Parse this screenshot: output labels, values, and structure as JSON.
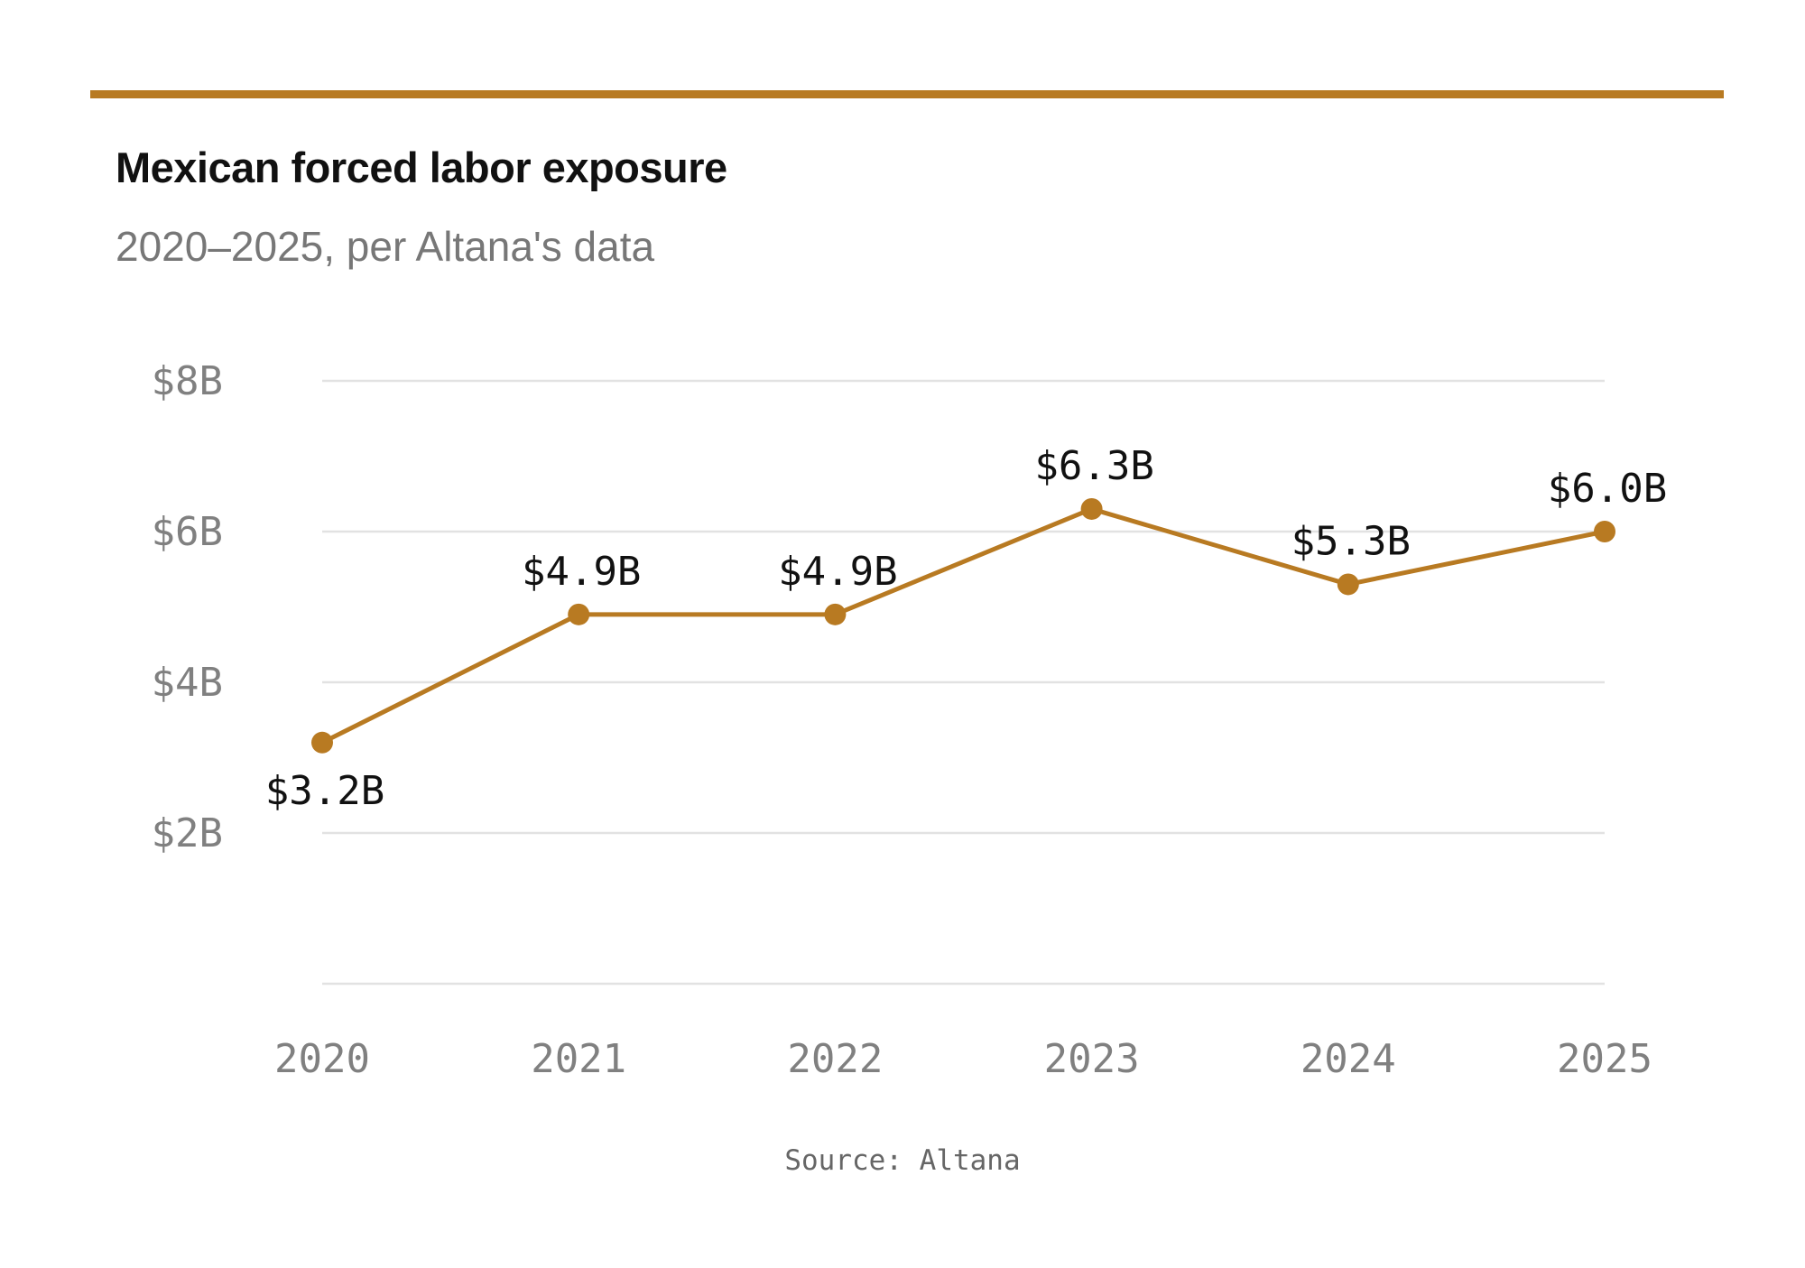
{
  "colors": {
    "accent": "#b87a22",
    "grid": "#e2e2e2",
    "tick_text": "#808080",
    "label_text": "#111111"
  },
  "header": {
    "title": "Mexican forced labor exposure",
    "subtitle": "2020–2025, per Altana's data"
  },
  "footer": {
    "source": "Source: Altana"
  },
  "chart_data": {
    "type": "line",
    "title": "Mexican forced labor exposure",
    "subtitle": "2020–2025, per Altana's data",
    "xlabel": "",
    "ylabel": "",
    "x": [
      "2020",
      "2021",
      "2022",
      "2023",
      "2024",
      "2025"
    ],
    "series": [
      {
        "values": [
          3.2,
          4.9,
          4.9,
          6.3,
          5.3,
          6.0
        ],
        "labels": [
          "$3.2B",
          "$4.9B",
          "$4.9B",
          "$6.3B",
          "$5.3B",
          "$6.0B"
        ],
        "label_positions": [
          "below",
          "above",
          "above",
          "above",
          "above",
          "above"
        ]
      }
    ],
    "ylim": [
      0,
      8
    ],
    "yticks": [
      2,
      4,
      6,
      8
    ],
    "ytick_labels": [
      "$2B",
      "$4B",
      "$6B",
      "$8B"
    ],
    "gridlines_at": [
      0,
      2,
      4,
      6,
      8
    ],
    "grid": true,
    "legend": "none",
    "markers": true
  }
}
